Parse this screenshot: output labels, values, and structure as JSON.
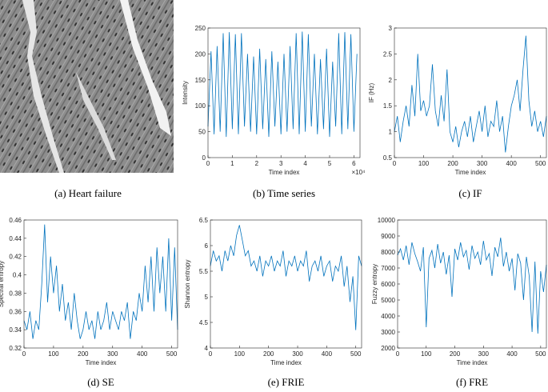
{
  "image_panel": {
    "caption": "(a) Heart failure"
  },
  "chart_data": [
    {
      "type": "line",
      "caption": "(b) Time series",
      "xlabel": "Time index",
      "ylabel": "Intensity",
      "x_multiplier": "×10⁴",
      "color": "#0072bd",
      "xlim": [
        0,
        62500
      ],
      "ylim": [
        0,
        250
      ],
      "xticks": [
        0,
        {
          "value": 10000,
          "label": "1"
        },
        {
          "value": 20000,
          "label": "2"
        },
        {
          "value": 30000,
          "label": "3"
        },
        {
          "value": 40000,
          "label": "4"
        },
        {
          "value": 50000,
          "label": "5"
        },
        {
          "value": 60000,
          "label": "6"
        }
      ],
      "yticks": [
        0,
        50,
        100,
        150,
        200,
        250
      ],
      "x": [
        0,
        1250,
        2500,
        3750,
        5000,
        6250,
        7500,
        8750,
        10000,
        11250,
        12500,
        13750,
        15000,
        16250,
        17500,
        18750,
        20000,
        21250,
        22500,
        23750,
        25000,
        26250,
        27500,
        28750,
        30000,
        31250,
        32500,
        33750,
        35000,
        36250,
        37500,
        38750,
        40000,
        41250,
        42500,
        43750,
        45000,
        46250,
        47500,
        48750,
        50000,
        51250,
        52500,
        53750,
        55000,
        56250,
        57500,
        58750,
        60000,
        61250
      ],
      "values": [
        60,
        205,
        45,
        215,
        50,
        240,
        40,
        242,
        55,
        238,
        45,
        240,
        60,
        200,
        50,
        195,
        45,
        210,
        55,
        190,
        40,
        205,
        60,
        185,
        45,
        200,
        50,
        215,
        55,
        240,
        45,
        243,
        50,
        238,
        60,
        200,
        45,
        190,
        55,
        210,
        40,
        185,
        60,
        240,
        45,
        242,
        55,
        238,
        50,
        200
      ]
    },
    {
      "type": "line",
      "caption": "(c) IF",
      "xlabel": "Time index",
      "ylabel": "IF (Hz)",
      "color": "#0072bd",
      "xlim": [
        0,
        520
      ],
      "ylim": [
        0.5,
        3
      ],
      "xticks": [
        0,
        100,
        200,
        300,
        400,
        500
      ],
      "yticks": [
        0.5,
        1,
        1.5,
        2,
        2.5,
        3
      ],
      "x": [
        0,
        10,
        20,
        30,
        40,
        50,
        60,
        70,
        80,
        90,
        100,
        110,
        120,
        130,
        140,
        150,
        160,
        170,
        180,
        190,
        200,
        210,
        220,
        230,
        240,
        250,
        260,
        270,
        280,
        290,
        300,
        310,
        320,
        330,
        340,
        350,
        360,
        370,
        380,
        390,
        400,
        410,
        420,
        430,
        440,
        450,
        460,
        470,
        480,
        490,
        500,
        510,
        520
      ],
      "values": [
        1.0,
        1.3,
        0.8,
        1.2,
        1.5,
        1.1,
        1.9,
        1.3,
        2.5,
        1.4,
        1.6,
        1.3,
        1.5,
        2.3,
        1.4,
        1.1,
        1.7,
        1.2,
        2.2,
        1.0,
        0.8,
        1.1,
        0.7,
        1.0,
        1.2,
        0.9,
        1.3,
        0.8,
        1.1,
        1.4,
        1.0,
        1.5,
        0.9,
        1.2,
        1.1,
        1.6,
        1.0,
        1.3,
        0.6,
        1.1,
        1.5,
        1.7,
        2.0,
        1.4,
        2.2,
        2.85,
        1.6,
        1.1,
        1.4,
        1.0,
        1.2,
        0.9,
        1.3
      ]
    },
    {
      "type": "line",
      "caption": "(d) SE",
      "xlabel": "Time index",
      "ylabel": "Spectral entropy",
      "color": "#0072bd",
      "xlim": [
        0,
        520
      ],
      "ylim": [
        0.32,
        0.46
      ],
      "xticks": [
        0,
        100,
        200,
        300,
        400,
        500
      ],
      "yticks": [
        0.32,
        0.34,
        0.36,
        0.38,
        0.4,
        0.42,
        0.44,
        0.46
      ],
      "x": [
        0,
        10,
        20,
        30,
        40,
        50,
        60,
        70,
        80,
        90,
        100,
        110,
        120,
        130,
        140,
        150,
        160,
        170,
        180,
        190,
        200,
        210,
        220,
        230,
        240,
        250,
        260,
        270,
        280,
        290,
        300,
        310,
        320,
        330,
        340,
        350,
        360,
        370,
        380,
        390,
        400,
        410,
        420,
        430,
        440,
        450,
        460,
        470,
        480,
        490,
        500,
        510,
        520
      ],
      "values": [
        0.35,
        0.34,
        0.36,
        0.33,
        0.35,
        0.34,
        0.39,
        0.455,
        0.37,
        0.42,
        0.38,
        0.41,
        0.36,
        0.39,
        0.35,
        0.37,
        0.34,
        0.38,
        0.35,
        0.33,
        0.34,
        0.36,
        0.34,
        0.35,
        0.33,
        0.36,
        0.34,
        0.35,
        0.37,
        0.34,
        0.36,
        0.35,
        0.34,
        0.36,
        0.35,
        0.37,
        0.33,
        0.36,
        0.35,
        0.38,
        0.36,
        0.41,
        0.37,
        0.42,
        0.36,
        0.43,
        0.38,
        0.42,
        0.36,
        0.44,
        0.35,
        0.43,
        0.34
      ]
    },
    {
      "type": "line",
      "caption": "(e) FRIE",
      "xlabel": "Time index",
      "ylabel": "Shannon entropy",
      "color": "#0072bd",
      "xlim": [
        0,
        520
      ],
      "ylim": [
        4,
        6.5
      ],
      "xticks": [
        0,
        100,
        200,
        300,
        400,
        500
      ],
      "yticks": [
        4,
        4.5,
        5,
        5.5,
        6,
        6.5
      ],
      "x": [
        0,
        10,
        20,
        30,
        40,
        50,
        60,
        70,
        80,
        90,
        100,
        110,
        120,
        130,
        140,
        150,
        160,
        170,
        180,
        190,
        200,
        210,
        220,
        230,
        240,
        250,
        260,
        270,
        280,
        290,
        300,
        310,
        320,
        330,
        340,
        350,
        360,
        370,
        380,
        390,
        400,
        410,
        420,
        430,
        440,
        450,
        460,
        470,
        480,
        490,
        500,
        510,
        520
      ],
      "values": [
        5.6,
        5.9,
        5.7,
        5.8,
        5.5,
        5.9,
        5.7,
        6.0,
        5.8,
        6.2,
        6.4,
        6.1,
        5.8,
        5.9,
        5.6,
        5.7,
        5.5,
        5.8,
        5.4,
        5.7,
        5.6,
        5.8,
        5.5,
        5.7,
        5.6,
        5.9,
        5.4,
        5.7,
        5.6,
        5.8,
        5.5,
        5.7,
        5.6,
        5.9,
        5.3,
        5.6,
        5.7,
        5.5,
        5.8,
        5.4,
        5.6,
        5.7,
        5.3,
        5.6,
        5.5,
        5.8,
        5.2,
        5.6,
        4.9,
        5.4,
        4.35,
        5.8,
        5.6
      ]
    },
    {
      "type": "line",
      "caption": "(f) FRE",
      "xlabel": "Time index",
      "ylabel": "Fuzzy entropy",
      "color": "#0072bd",
      "xlim": [
        0,
        520
      ],
      "ylim": [
        2000,
        10000
      ],
      "xticks": [
        0,
        100,
        200,
        300,
        400,
        500
      ],
      "yticks": [
        2000,
        3000,
        4000,
        5000,
        6000,
        7000,
        8000,
        9000,
        10000
      ],
      "x": [
        0,
        10,
        20,
        30,
        40,
        50,
        60,
        70,
        80,
        90,
        100,
        110,
        120,
        130,
        140,
        150,
        160,
        170,
        180,
        190,
        200,
        210,
        220,
        230,
        240,
        250,
        260,
        270,
        280,
        290,
        300,
        310,
        320,
        330,
        340,
        350,
        360,
        370,
        380,
        390,
        400,
        410,
        420,
        430,
        440,
        450,
        460,
        470,
        480,
        490,
        500,
        510,
        520
      ],
      "values": [
        7800,
        8200,
        7500,
        8400,
        7200,
        8600,
        7900,
        7400,
        6800,
        8300,
        3300,
        7600,
        8100,
        7000,
        8500,
        7300,
        8000,
        6600,
        7800,
        5200,
        8200,
        7500,
        8600,
        7700,
        8100,
        6900,
        8400,
        7600,
        8000,
        7200,
        8700,
        7500,
        7900,
        6500,
        8300,
        7700,
        8900,
        7100,
        8000,
        6800,
        7600,
        5600,
        7900,
        7300,
        5000,
        7700,
        6500,
        3000,
        7400,
        2900,
        6800,
        5500,
        7200
      ]
    }
  ]
}
